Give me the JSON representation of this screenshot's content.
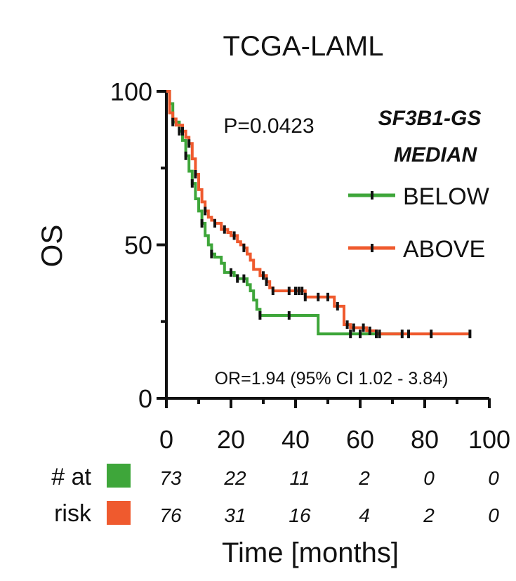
{
  "chart_data": {
    "type": "line",
    "subtype": "kaplan-meier",
    "title": "TCGA-LAML",
    "xlabel": "Time [months]",
    "ylabel": "OS",
    "xlim": [
      0,
      100
    ],
    "ylim": [
      0,
      100
    ],
    "xticks": [
      0,
      20,
      40,
      60,
      80,
      100
    ],
    "yticks": [
      0,
      50,
      100
    ],
    "p_value": "P=0.0423",
    "odds_ratio": "OR=1.94 (95% CI 1.02 - 3.84)",
    "legend_title": [
      "SF3B1-GS",
      "MEDIAN"
    ],
    "legend_position": "top-right",
    "series": [
      {
        "name": "BELOW",
        "color": "#3ea63a",
        "steps": [
          [
            0,
            100
          ],
          [
            1,
            96
          ],
          [
            2,
            90
          ],
          [
            4,
            87
          ],
          [
            5,
            84
          ],
          [
            6,
            79
          ],
          [
            7,
            74
          ],
          [
            8,
            70
          ],
          [
            9,
            65
          ],
          [
            10,
            61
          ],
          [
            11,
            57
          ],
          [
            12,
            53
          ],
          [
            13,
            50
          ],
          [
            14,
            47
          ],
          [
            15,
            46
          ],
          [
            17,
            44
          ],
          [
            18,
            41
          ],
          [
            21,
            40
          ],
          [
            22,
            39
          ],
          [
            24,
            39
          ],
          [
            25,
            37
          ],
          [
            26,
            35
          ],
          [
            27,
            32
          ],
          [
            28,
            29
          ],
          [
            29,
            27
          ],
          [
            35,
            27
          ],
          [
            45,
            27
          ],
          [
            47,
            21
          ],
          [
            55,
            21
          ],
          [
            65,
            21
          ],
          [
            73,
            21
          ]
        ],
        "censor_x": [
          2,
          4,
          6,
          8,
          11,
          14,
          20,
          22,
          24,
          29,
          38,
          57,
          60,
          65,
          73
        ]
      },
      {
        "name": "ABOVE",
        "color": "#ef5a2e",
        "steps": [
          [
            0,
            100
          ],
          [
            1,
            93
          ],
          [
            2,
            91
          ],
          [
            3,
            89
          ],
          [
            5,
            87
          ],
          [
            6,
            85
          ],
          [
            7,
            83
          ],
          [
            8,
            78
          ],
          [
            9,
            73
          ],
          [
            10,
            68
          ],
          [
            11,
            64
          ],
          [
            12,
            61
          ],
          [
            13,
            59
          ],
          [
            14,
            58
          ],
          [
            15,
            57
          ],
          [
            17,
            55
          ],
          [
            19,
            54
          ],
          [
            20,
            53
          ],
          [
            22,
            51
          ],
          [
            23,
            50
          ],
          [
            24,
            49
          ],
          [
            25,
            47
          ],
          [
            26,
            45
          ],
          [
            27,
            42
          ],
          [
            29,
            40
          ],
          [
            31,
            38
          ],
          [
            32,
            36
          ],
          [
            33,
            35
          ],
          [
            35,
            35
          ],
          [
            40,
            35
          ],
          [
            42,
            35
          ],
          [
            43,
            33
          ],
          [
            50,
            33
          ],
          [
            52,
            30
          ],
          [
            55,
            24
          ],
          [
            57,
            23
          ],
          [
            62,
            22
          ],
          [
            65,
            21
          ],
          [
            75,
            21
          ],
          [
            94,
            21
          ]
        ],
        "censor_x": [
          5,
          7,
          9,
          12,
          15,
          18,
          21,
          24,
          30,
          31,
          33,
          38,
          40,
          41,
          42,
          43,
          47,
          50,
          53,
          56,
          58,
          61,
          63,
          66,
          75,
          82,
          94
        ]
      }
    ],
    "risk_table": {
      "label_line1": "# at",
      "label_line2": "risk",
      "rows": [
        {
          "name": "BELOW",
          "color": "#3ea63a",
          "values": [
            "73",
            "22",
            "11",
            "2",
            "0",
            "0"
          ]
        },
        {
          "name": "ABOVE",
          "color": "#ef5a2e",
          "values": [
            "76",
            "31",
            "16",
            "4",
            "2",
            "0"
          ]
        }
      ]
    }
  }
}
